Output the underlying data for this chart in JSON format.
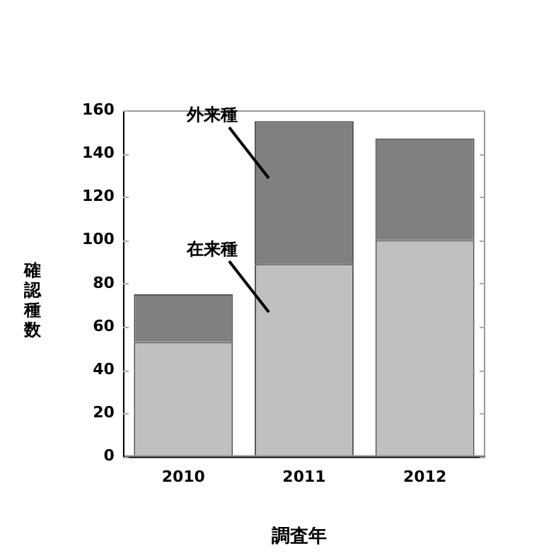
{
  "chart_data": {
    "type": "bar",
    "stacked": true,
    "xlabel": "調査年",
    "ylabel": "確認種数",
    "categories": [
      "2010",
      "2011",
      "2012"
    ],
    "series": [
      {
        "name": "在来種",
        "color": "#c0c0c0",
        "values": [
          53,
          89,
          100
        ]
      },
      {
        "name": "外来種",
        "color": "#808080",
        "values": [
          22,
          66,
          47
        ]
      }
    ],
    "ylim": [
      0,
      160
    ],
    "yticks": [
      0,
      20,
      40,
      60,
      80,
      100,
      120,
      140,
      160
    ],
    "grid": false,
    "legend": false
  }
}
